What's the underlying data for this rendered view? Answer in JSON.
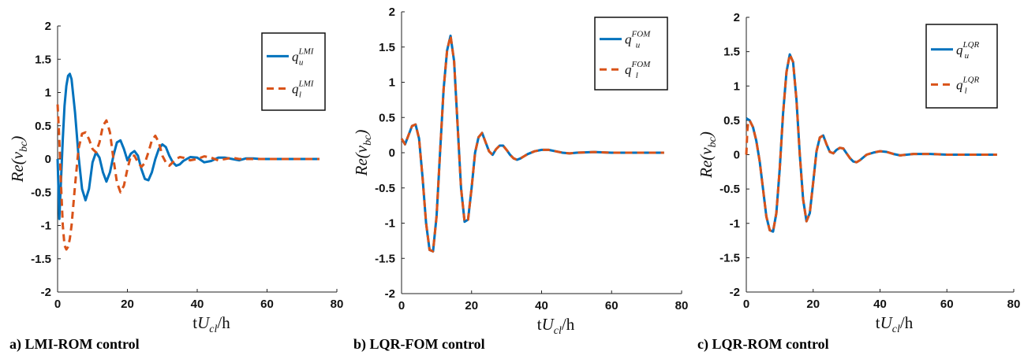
{
  "colors": {
    "upper": "#0072BD",
    "lower": "#D95319"
  },
  "chart_data": [
    {
      "type": "line",
      "caption": "a) LMI-ROM control",
      "xlabel": "tU_cl/h",
      "ylabel": "Re(v_bc)",
      "xlim": [
        0,
        80
      ],
      "ylim": [
        -2,
        2
      ],
      "xticks": [
        "0",
        "20",
        "40",
        "60",
        "80"
      ],
      "yticks": [
        "-2",
        "-1.5",
        "-1",
        "-0.5",
        "0",
        "0.5",
        "1",
        "1.5",
        "2"
      ],
      "legend_position": "top-right",
      "series": [
        {
          "name": "q_u^LMI",
          "style": "solid",
          "x": [
            0,
            0.5,
            1,
            1.5,
            2,
            2.5,
            3,
            3.5,
            4,
            5,
            6,
            7,
            8,
            9,
            10,
            11,
            12,
            13,
            14,
            15,
            16,
            17,
            18,
            19,
            20,
            21,
            22,
            23,
            24,
            25,
            26,
            27,
            28,
            29,
            30,
            31,
            32,
            33,
            34,
            35,
            36,
            38,
            40,
            42,
            44,
            46,
            48,
            50,
            52,
            54,
            56,
            58,
            60,
            65,
            70,
            75
          ],
          "y": [
            0,
            -0.9,
            -0.3,
            0.3,
            0.8,
            1.1,
            1.25,
            1.28,
            1.2,
            0.7,
            0.05,
            -0.45,
            -0.62,
            -0.45,
            -0.05,
            0.1,
            0.02,
            -0.2,
            -0.34,
            -0.2,
            0.05,
            0.25,
            0.28,
            0.15,
            -0.02,
            0.08,
            0.12,
            0.05,
            -0.15,
            -0.3,
            -0.32,
            -0.2,
            0,
            0.15,
            0.22,
            0.18,
            0.05,
            -0.05,
            -0.1,
            -0.08,
            -0.03,
            0.03,
            0.02,
            -0.05,
            -0.03,
            0.02,
            0.02,
            0,
            -0.02,
            0.01,
            0.01,
            0,
            0,
            0,
            0,
            0
          ]
        },
        {
          "name": "q_l^LMI",
          "style": "dashed",
          "x": [
            0,
            0.5,
            1,
            1.5,
            2,
            2.5,
            3,
            3.5,
            4,
            5,
            6,
            7,
            8,
            9,
            10,
            11,
            12,
            13,
            14,
            15,
            16,
            17,
            18,
            19,
            20,
            21,
            22,
            23,
            24,
            25,
            26,
            27,
            28,
            29,
            30,
            31,
            32,
            33,
            34,
            35,
            36,
            38,
            40,
            42,
            44,
            46,
            48,
            50,
            52,
            54,
            56,
            58,
            60,
            65,
            70,
            75
          ],
          "y": [
            0.82,
            0.3,
            -0.4,
            -1.0,
            -1.3,
            -1.36,
            -1.32,
            -1.2,
            -1.0,
            -0.4,
            0.15,
            0.38,
            0.4,
            0.3,
            0.15,
            0.1,
            0.25,
            0.5,
            0.58,
            0.4,
            0.0,
            -0.35,
            -0.5,
            -0.4,
            -0.15,
            0.05,
            0.05,
            -0.05,
            -0.12,
            -0.06,
            0.1,
            0.28,
            0.35,
            0.25,
            0.05,
            -0.05,
            -0.1,
            -0.05,
            0.0,
            0.03,
            0.02,
            -0.02,
            0.0,
            0.04,
            0.02,
            -0.02,
            0.0,
            0.02,
            0.0,
            0.0,
            0.0,
            0.0,
            0.0,
            0.0,
            0.0,
            0.0
          ]
        }
      ]
    },
    {
      "type": "line",
      "caption": "b) LQR-FOM control",
      "xlabel": "tU_cl/h",
      "ylabel": "Re(v_bc)",
      "xlim": [
        0,
        80
      ],
      "ylim": [
        -2,
        2
      ],
      "xticks": [
        "0",
        "20",
        "40",
        "60",
        "80"
      ],
      "yticks": [
        "-2",
        "-1.5",
        "-1",
        "-0.5",
        "0",
        "0.5",
        "1",
        "1.5",
        "2"
      ],
      "legend_position": "top-right",
      "series": [
        {
          "name": "q_u^FOM",
          "style": "solid",
          "x": [
            0,
            1,
            2,
            3,
            4,
            5,
            6,
            7,
            8,
            9,
            10,
            11,
            12,
            13,
            14,
            15,
            16,
            17,
            18,
            19,
            20,
            21,
            22,
            23,
            24,
            25,
            26,
            27,
            28,
            29,
            30,
            31,
            32,
            33,
            34,
            35,
            36,
            38,
            40,
            42,
            44,
            46,
            48,
            50,
            55,
            60,
            65,
            70,
            75
          ],
          "y": [
            0.2,
            0.12,
            0.25,
            0.38,
            0.4,
            0.2,
            -0.35,
            -1.0,
            -1.38,
            -1.4,
            -0.9,
            0.0,
            0.9,
            1.45,
            1.66,
            1.3,
            0.4,
            -0.5,
            -0.98,
            -0.95,
            -0.5,
            0.0,
            0.22,
            0.28,
            0.15,
            0.02,
            -0.03,
            0.05,
            0.1,
            0.1,
            0.04,
            -0.03,
            -0.08,
            -0.1,
            -0.08,
            -0.05,
            -0.02,
            0.02,
            0.04,
            0.04,
            0.02,
            0.0,
            -0.01,
            0.0,
            0.01,
            0.0,
            0.0,
            0.0,
            0.0
          ]
        },
        {
          "name": "q_l^FOM",
          "style": "dashed",
          "x": [
            0,
            1,
            2,
            3,
            4,
            5,
            6,
            7,
            8,
            9,
            10,
            11,
            12,
            13,
            14,
            15,
            16,
            17,
            18,
            19,
            20,
            21,
            22,
            23,
            24,
            25,
            26,
            27,
            28,
            29,
            30,
            31,
            32,
            33,
            34,
            35,
            36,
            38,
            40,
            42,
            44,
            46,
            48,
            50,
            55,
            60,
            65,
            70,
            75
          ],
          "y": [
            0.2,
            0.12,
            0.25,
            0.38,
            0.4,
            0.2,
            -0.35,
            -1.0,
            -1.38,
            -1.4,
            -0.9,
            0.0,
            0.9,
            1.45,
            1.66,
            1.3,
            0.4,
            -0.5,
            -0.98,
            -0.95,
            -0.5,
            0.0,
            0.22,
            0.28,
            0.15,
            0.02,
            -0.03,
            0.05,
            0.1,
            0.1,
            0.04,
            -0.03,
            -0.08,
            -0.1,
            -0.08,
            -0.05,
            -0.02,
            0.02,
            0.04,
            0.04,
            0.02,
            0.0,
            -0.01,
            0.0,
            0.01,
            0.0,
            0.0,
            0.0,
            0.0
          ]
        }
      ]
    },
    {
      "type": "line",
      "caption": "c) LQR-ROM control",
      "xlabel": "tU_cl/h",
      "ylabel": "Re(v_bc)",
      "xlim": [
        0,
        80
      ],
      "ylim": [
        -2,
        2
      ],
      "xticks": [
        "0",
        "20",
        "40",
        "60",
        "80"
      ],
      "yticks": [
        "-2",
        "-1.5",
        "-1",
        "-0.5",
        "0",
        "0.5",
        "1",
        "1.5",
        "2"
      ],
      "legend_position": "top-right",
      "series": [
        {
          "name": "q_u^LQR",
          "style": "solid",
          "x": [
            0,
            1,
            2,
            3,
            4,
            5,
            6,
            7,
            8,
            9,
            10,
            11,
            12,
            13,
            14,
            15,
            16,
            17,
            18,
            19,
            20,
            21,
            22,
            23,
            24,
            25,
            26,
            27,
            28,
            29,
            30,
            31,
            32,
            33,
            34,
            35,
            36,
            38,
            40,
            42,
            44,
            46,
            48,
            50,
            55,
            60,
            65,
            70,
            75
          ],
          "y": [
            0.53,
            0.5,
            0.4,
            0.2,
            -0.1,
            -0.5,
            -0.9,
            -1.1,
            -1.12,
            -0.85,
            -0.2,
            0.6,
            1.2,
            1.46,
            1.35,
            0.8,
            0.0,
            -0.65,
            -0.97,
            -0.85,
            -0.4,
            0.05,
            0.25,
            0.28,
            0.15,
            0.04,
            0.02,
            0.07,
            0.1,
            0.09,
            0.02,
            -0.05,
            -0.1,
            -0.11,
            -0.08,
            -0.04,
            0.0,
            0.03,
            0.05,
            0.04,
            0.01,
            -0.01,
            0.0,
            0.01,
            0.01,
            0.0,
            0.0,
            0.0,
            0.0
          ]
        },
        {
          "name": "q_l^LQR",
          "style": "dashed",
          "x": [
            0,
            0.3,
            0.6,
            1,
            2,
            3,
            4,
            5,
            6,
            7,
            8,
            9,
            10,
            11,
            12,
            13,
            14,
            15,
            16,
            17,
            18,
            19,
            20,
            21,
            22,
            23,
            24,
            25,
            26,
            27,
            28,
            29,
            30,
            31,
            32,
            33,
            34,
            35,
            36,
            38,
            40,
            42,
            44,
            46,
            48,
            50,
            55,
            60,
            65,
            70,
            75
          ],
          "y": [
            0.0,
            0.35,
            0.48,
            0.5,
            0.4,
            0.2,
            -0.1,
            -0.5,
            -0.9,
            -1.1,
            -1.12,
            -0.85,
            -0.2,
            0.6,
            1.2,
            1.46,
            1.35,
            0.8,
            0.0,
            -0.65,
            -0.97,
            -0.85,
            -0.4,
            0.05,
            0.25,
            0.28,
            0.15,
            0.04,
            0.02,
            0.07,
            0.1,
            0.09,
            0.02,
            -0.05,
            -0.1,
            -0.11,
            -0.08,
            -0.04,
            0.0,
            0.03,
            0.05,
            0.04,
            0.01,
            -0.01,
            0.0,
            0.01,
            0.01,
            0.0,
            0.0,
            0.0,
            0.0
          ]
        }
      ]
    }
  ]
}
